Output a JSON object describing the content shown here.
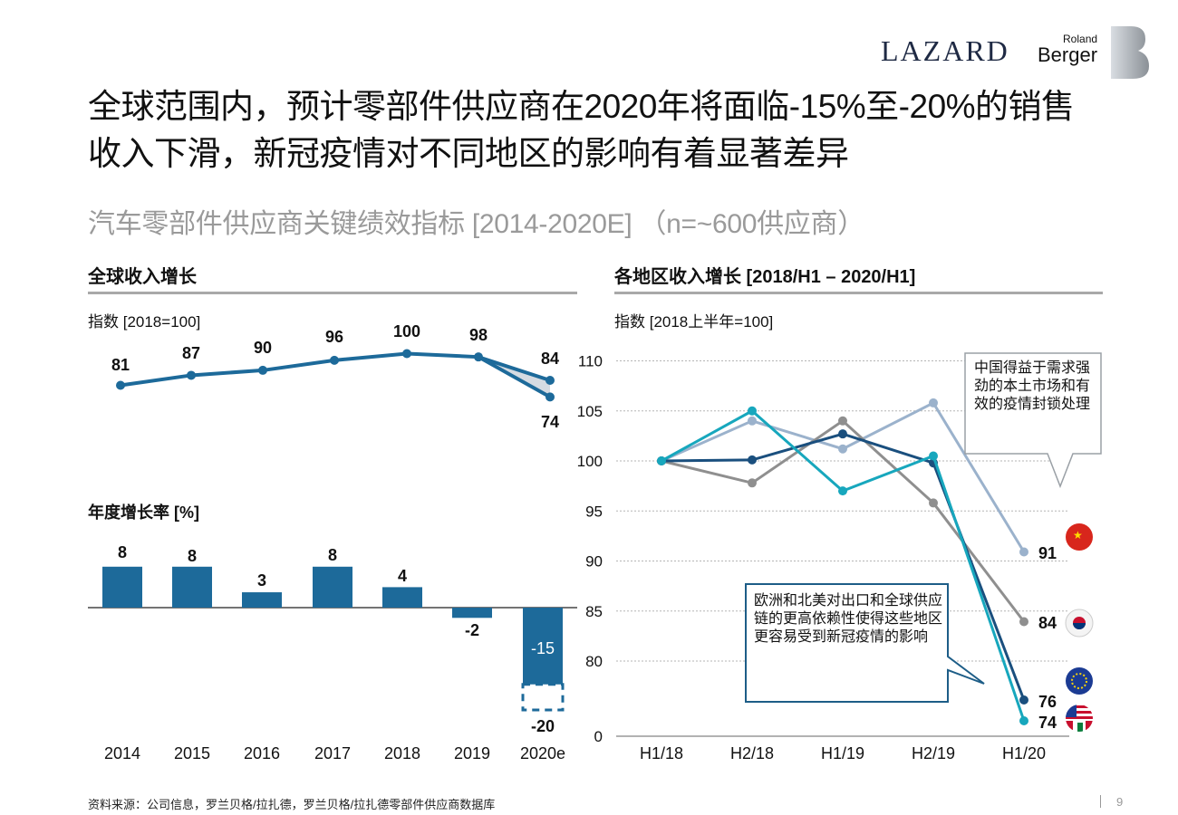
{
  "logos": {
    "lazard": "LAZARD",
    "roland": "Roland",
    "berger": "Berger"
  },
  "title": "全球范围内，预计零部件供应商在2020年将面临-15%至-20%的销售收入下滑，新冠疫情对不同地区的影响有着显著差异",
  "subtitle": "汽车零部件供应商关键绩效指标 [2014-2020E] （n=~600供应商）",
  "left": {
    "heading": "全球收入增长",
    "index_label": "指数 [2018=100]",
    "bar_heading": "年度增长率 [%]"
  },
  "right": {
    "heading": "各地区收入增长 [2018/H1 – 2020/H1]",
    "index_label": "指数 [2018上半年=100]",
    "callout_china": "中国得益于需求强劲的本土市场和有效的疫情封锁处理",
    "callout_eu_us": "欧洲和北美对出口和全球供应链的更高依赖性使得这些地区更容易受到新冠疫情的影响"
  },
  "footer": "资料来源：公司信息，罗兰贝格/拉扎德，罗兰贝格/拉扎德零部件供应商数据库",
  "page_number": "9",
  "colors": {
    "dark_blue": "#1d6a9a",
    "navy": "#1a4f7e",
    "cyan": "#17a7bd",
    "light_blue": "#9bb2cc",
    "grey": "#8f8f8f",
    "shade": "#d5dbe2"
  },
  "chart_data": [
    {
      "type": "line",
      "title": "全球收入增长",
      "ylabel": "指数 [2018=100]",
      "categories": [
        "2014",
        "2015",
        "2016",
        "2017",
        "2018",
        "2019",
        "2020e"
      ],
      "series": [
        {
          "values": [
            81,
            87,
            90,
            96,
            100,
            98,
            84
          ]
        }
      ],
      "range_2020e": [
        74,
        84
      ],
      "data_labels": [
        "81",
        "87",
        "90",
        "96",
        "100",
        "98",
        "84",
        "74"
      ]
    },
    {
      "type": "bar",
      "title": "年度增长率 [%]",
      "categories": [
        "2014",
        "2015",
        "2016",
        "2017",
        "2018",
        "2019",
        "2020e"
      ],
      "values": [
        8,
        8,
        3,
        8,
        4,
        -2,
        -15
      ],
      "extra_2020e_low": -20,
      "labels": [
        "8",
        "8",
        "3",
        "8",
        "4",
        "-2",
        "-15",
        "-20"
      ]
    },
    {
      "type": "line",
      "title": "各地区收入增长 [2018/H1 – 2020/H1]",
      "ylabel": "指数 [2018上半年=100]",
      "categories": [
        "H1/18",
        "H2/18",
        "H1/19",
        "H2/19",
        "H1/20"
      ],
      "yticks": [
        "110",
        "105",
        "100",
        "95",
        "90",
        "85",
        "80",
        "0"
      ],
      "series": [
        {
          "region": "china",
          "values": [
            100,
            104,
            101.2,
            105.8,
            91
          ],
          "end_label": "91"
        },
        {
          "region": "korea",
          "values": [
            100,
            97.8,
            104,
            95.8,
            84
          ],
          "end_label": "84"
        },
        {
          "region": "europe",
          "values": [
            100,
            100.1,
            102.7,
            99.8,
            76
          ],
          "end_label": "76"
        },
        {
          "region": "north_america",
          "values": [
            100,
            105,
            97,
            100.5,
            74
          ],
          "end_label": "74"
        }
      ]
    }
  ]
}
